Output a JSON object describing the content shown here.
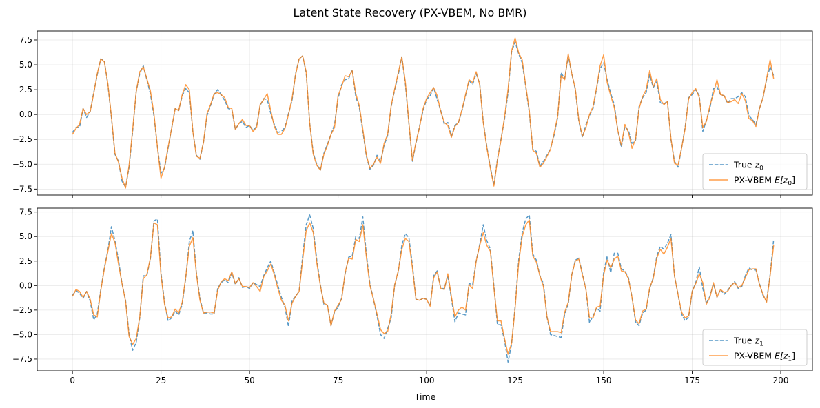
{
  "figure": {
    "title": "Latent State Recovery (PX-VBEM, No BMR)",
    "xlabel": "Time"
  },
  "colors": {
    "true": "#1f77b4",
    "est": "#ff7f0e",
    "grid": "#b0b0b0",
    "axis": "#000000"
  },
  "chart_data": [
    {
      "type": "line",
      "xlim": [
        -9.95,
        208.95
      ],
      "ylim": [
        -8.1,
        8.4
      ],
      "xticks": [
        0,
        25,
        50,
        75,
        100,
        125,
        150,
        175,
        200
      ],
      "yticks": [
        -7.5,
        -5.0,
        -2.5,
        0.0,
        2.5,
        5.0,
        7.5
      ],
      "ytick_labels": [
        "−7.5",
        "−5.0",
        "−2.5",
        "0.0",
        "2.5",
        "5.0",
        "7.5"
      ],
      "grid": true,
      "legend_placement": "lower right",
      "legend": {
        "true_text": "True ",
        "true_math": "z",
        "true_sub": "0",
        "est_text": "PX-VBEM ",
        "est_math": "E[z",
        "est_sub": "0",
        "est_close": "]"
      },
      "series": [
        {
          "name": "True z0",
          "style": "dashed",
          "values": [
            -1.8,
            -1.3,
            -1.3,
            0.6,
            -0.3,
            0.3,
            2.2,
            4,
            5.6,
            5.4,
            3,
            -0.3,
            -4,
            -4.7,
            -6.7,
            -7.3,
            -5.3,
            -1.7,
            2.3,
            4.1,
            4.9,
            3.5,
            2.1,
            -0.1,
            -3.3,
            -5.9,
            -5.4,
            -3.4,
            -1.4,
            0.6,
            0.4,
            1.9,
            2.6,
            2.2,
            -1.7,
            -4.1,
            -4.5,
            -2.8,
            -0.1,
            0.9,
            2,
            2.5,
            2,
            1.4,
            0.6,
            0.5,
            -1.5,
            -0.9,
            -0.7,
            -1.3,
            -1.1,
            -1.6,
            -1.2,
            0.9,
            1.6,
            1.5,
            0.1,
            -1,
            -1.8,
            -1.7,
            -1.3,
            0.1,
            1.4,
            4.1,
            5.6,
            5.9,
            4.2,
            -0.9,
            -3.9,
            -5,
            -5.6,
            -3.9,
            -3,
            -2,
            -1,
            1.6,
            3,
            3.5,
            3.6,
            4.5,
            1.8,
            0.7,
            -1.7,
            -4.2,
            -5.5,
            -5.1,
            -4.1,
            -4.7,
            -3.1,
            -2.1,
            0.8,
            2.5,
            4,
            5.8,
            3.1,
            -0.9,
            -4.7,
            -2.9,
            -1.2,
            0.4,
            1.5,
            1.9,
            2.7,
            1.5,
            0.4,
            -1,
            -0.8,
            -2.2,
            -1.1,
            -0.8,
            0.4,
            1.9,
            3.4,
            3,
            4.1,
            3.1,
            -0.7,
            -3.2,
            -5.3,
            -7.1,
            -4.5,
            -2.5,
            -0.5,
            2.2,
            6.3,
            7.3,
            6.1,
            5.2,
            2.8,
            0.2,
            -3.5,
            -3.7,
            -5.2,
            -4.7,
            -4.1,
            -3.4,
            -2.1,
            -0.3,
            4.2,
            3.6,
            5.9,
            4.1,
            2.5,
            -0.7,
            -2.3,
            -1,
            -0.1,
            0.6,
            2.6,
            4.6,
            5.2,
            3.5,
            2.1,
            1,
            -1.6,
            -3.3,
            -1.2,
            -1.6,
            -2.9,
            -2.6,
            0.8,
            1.7,
            2.2,
            4,
            2.7,
            3.3,
            1.2,
            1,
            1.4,
            -2.5,
            -4.7,
            -5.3,
            -3.4,
            -1.3,
            1.7,
            2,
            2.5,
            1.9,
            -1.7,
            -0.6,
            0.6,
            2.6,
            2.8,
            2,
            1.9,
            1.1,
            1.6,
            1.6,
            1.8,
            2.2,
            1.8,
            -0.1,
            -0.5,
            -1,
            0.6,
            1.7,
            3.5,
            4.8,
            3.9
          ]
        },
        {
          "name": "PX-VBEM E[z0]",
          "style": "solid",
          "values": [
            -2,
            -1.4,
            -1,
            0.6,
            0,
            0.3,
            2.1,
            4.1,
            5.6,
            5.3,
            3.1,
            -0.2,
            -3.9,
            -4.8,
            -6.4,
            -7.4,
            -5.1,
            -1.5,
            2.3,
            4.3,
            4.8,
            3.6,
            2.4,
            0.1,
            -3.3,
            -6.4,
            -5.3,
            -3.3,
            -1.4,
            0.6,
            0.4,
            2,
            3,
            2.5,
            -1.7,
            -4.2,
            -4.4,
            -2.8,
            0.1,
            1,
            2.1,
            2.2,
            2,
            1.7,
            0.7,
            0.6,
            -1.5,
            -0.9,
            -0.5,
            -1.1,
            -1.1,
            -1.7,
            -1.3,
            1,
            1.5,
            2.1,
            0.4,
            -1.2,
            -2,
            -2,
            -1.4,
            0,
            1.6,
            4,
            5.6,
            5.9,
            4.3,
            -0.9,
            -4,
            -5.1,
            -5.6,
            -4,
            -3.1,
            -2,
            -1.3,
            1.9,
            2.8,
            3.9,
            3.8,
            4.4,
            2.1,
            0.9,
            -1.5,
            -4.1,
            -5.4,
            -5,
            -4.3,
            -4.9,
            -2.9,
            -2,
            0.9,
            2.6,
            4.2,
            5.8,
            3.3,
            -0.8,
            -4.6,
            -2.8,
            -1.3,
            0.6,
            1.6,
            2.2,
            2.7,
            1.9,
            0.3,
            -0.8,
            -1.1,
            -2.3,
            -1.2,
            -0.8,
            0.5,
            2,
            3.5,
            3.2,
            4.3,
            3,
            -0.8,
            -3.3,
            -5.4,
            -7.2,
            -4.6,
            -2.6,
            -0.3,
            2.5,
            6.4,
            7.7,
            6.2,
            5.5,
            2.9,
            0.4,
            -3.6,
            -3.9,
            -5.3,
            -4.9,
            -4.2,
            -3.5,
            -1.9,
            -0.2,
            3.9,
            3.5,
            6.1,
            4.1,
            2.6,
            -0.6,
            -2.2,
            -1.3,
            0,
            0.8,
            2.7,
            4.9,
            6,
            3.2,
            1.9,
            0.7,
            -1.6,
            -3.1,
            -1,
            -1.8,
            -3.4,
            -2.5,
            0.6,
            1.8,
            2.5,
            4.4,
            2.8,
            3.6,
            1.5,
            1,
            1.3,
            -2.4,
            -4.9,
            -5.1,
            -3.4,
            -1.4,
            1.6,
            2.2,
            2.6,
            1.7,
            -1.3,
            -0.7,
            0.9,
            2.1,
            3.5,
            2,
            1.9,
            1.2,
            1.3,
            1.5,
            1.1,
            2.1,
            1.4,
            -0.4,
            -0.6,
            -1.2,
            0.6,
            1.7,
            3.6,
            5.5,
            3.6
          ]
        }
      ]
    },
    {
      "type": "line",
      "xlim": [
        -9.95,
        208.95
      ],
      "ylim": [
        -8.7,
        7.9
      ],
      "xticks": [
        0,
        25,
        50,
        75,
        100,
        125,
        150,
        175,
        200
      ],
      "xtick_labels": [
        "0",
        "25",
        "50",
        "75",
        "100",
        "125",
        "150",
        "175",
        "200"
      ],
      "yticks": [
        -7.5,
        -5.0,
        -2.5,
        0.0,
        2.5,
        5.0,
        7.5
      ],
      "ytick_labels": [
        "−7.5",
        "−5.0",
        "−2.5",
        "0.0",
        "2.5",
        "5.0",
        "7.5"
      ],
      "grid": true,
      "legend_placement": "lower right",
      "legend": {
        "true_text": "True ",
        "true_math": "z",
        "true_sub": "1",
        "est_text": "PX-VBEM ",
        "est_math": "E[z",
        "est_sub": "1",
        "est_close": "]"
      },
      "series": [
        {
          "name": "True z1",
          "style": "dashed",
          "values": [
            -1,
            -0.5,
            -0.8,
            -1.3,
            -0.6,
            -1.6,
            -3.5,
            -2.9,
            -0.4,
            1.8,
            3.6,
            6,
            4.6,
            2.6,
            0.2,
            -1.5,
            -5,
            -6.6,
            -5.8,
            -3.3,
            1,
            1,
            2.7,
            6.6,
            6.8,
            1.3,
            -1.7,
            -3.6,
            -3.3,
            -2.6,
            -3,
            -1.9,
            0.8,
            4.5,
            5.6,
            1.3,
            -1.3,
            -2.8,
            -2.8,
            -2.9,
            -2.9,
            -0.3,
            0.3,
            0.6,
            0.3,
            1.3,
            0.1,
            0.8,
            -0.2,
            -0.1,
            -0.3,
            0.3,
            0.1,
            -0.1,
            1,
            1.8,
            2.5,
            1.3,
            0,
            -1.2,
            -2.2,
            -4.2,
            -1.6,
            -1.1,
            -0.6,
            3,
            6.2,
            7.2,
            5.8,
            2.6,
            0.1,
            -1.9,
            -2,
            -4.1,
            -2.7,
            -2.2,
            -1.3,
            1.2,
            2.9,
            3,
            5,
            4.8,
            7,
            3.2,
            0.2,
            -1.4,
            -3.1,
            -5,
            -5.4,
            -4.4,
            -3.3,
            0.1,
            1.4,
            4.1,
            5.3,
            4.9,
            2.1,
            -1.4,
            -1.5,
            -1.3,
            -1.4,
            -2.1,
            1,
            1.5,
            -0.3,
            -0.3,
            1,
            -1.3,
            -3.7,
            -2.8,
            -2.9,
            -3,
            0.2,
            0.1,
            2.5,
            4.2,
            6.2,
            4.6,
            3.7,
            0,
            -4,
            -4,
            -5.6,
            -7.8,
            -6,
            -2.1,
            2.6,
            5.4,
            6.8,
            7.2,
            3.2,
            2.6,
            1,
            0.2,
            -3.2,
            -5,
            -5.1,
            -5.2,
            -5.3,
            -2.9,
            -1.9,
            1.1,
            2.6,
            2.8,
            1.2,
            -0.4,
            -3.8,
            -3.1,
            -2.3,
            -2.6,
            1.4,
            3,
            1.3,
            3.3,
            3.3,
            1.7,
            1.5,
            0.8,
            -1.2,
            -3.7,
            -4.1,
            -2.8,
            -2.5,
            -0.3,
            0.8,
            3,
            4,
            3.7,
            4.3,
            5.2,
            1,
            -0.9,
            -2.9,
            -3.6,
            -3.2,
            -0.6,
            0.3,
            1.9,
            -0.3,
            -1.8,
            -1.1,
            0.2,
            -1.2,
            -0.4,
            -0.9,
            -0.5,
            0,
            0.4,
            -0.3,
            -0.1,
            1,
            1.8,
            1.6,
            1.6,
            0.2,
            -1,
            -1.6,
            1.1,
            4.7
          ]
        },
        {
          "name": "PX-VBEM E[z1]",
          "style": "solid",
          "values": [
            -1.1,
            -0.4,
            -0.6,
            -1.2,
            -0.6,
            -1.4,
            -3,
            -3.2,
            -0.5,
            1.7,
            3.5,
            5.3,
            4.4,
            2.2,
            0.2,
            -1.6,
            -5.2,
            -6,
            -5.4,
            -3.2,
            0.7,
            1.1,
            2.8,
            6.4,
            6.2,
            1.1,
            -1.9,
            -3.3,
            -3.2,
            -2.4,
            -2.8,
            -1.7,
            0.9,
            4,
            4.9,
            1.2,
            -1.5,
            -2.8,
            -2.7,
            -2.7,
            -2.8,
            -0.5,
            0.4,
            0.7,
            0.5,
            1.4,
            0.2,
            0.7,
            -0.1,
            -0.1,
            -0.2,
            0.3,
            -0.1,
            -0.6,
            0.9,
            1.5,
            2.2,
            1.1,
            -0.3,
            -1.5,
            -2,
            -3.6,
            -1.8,
            -1.1,
            -0.6,
            2.6,
            5.6,
            6.4,
            5.4,
            2.3,
            0,
            -1.8,
            -2,
            -4.1,
            -2.6,
            -2,
            -1.4,
            1.3,
            2.8,
            2.7,
            4.7,
            4.5,
            6.2,
            2.9,
            0,
            -1.4,
            -2.9,
            -4.5,
            -4.9,
            -4.7,
            -2.9,
            0.1,
            1.5,
            3.7,
            4.8,
            4.5,
            1.8,
            -1.4,
            -1.5,
            -1.3,
            -1.4,
            -2.1,
            0.8,
            1.4,
            -0.3,
            -0.4,
            1.2,
            -1.1,
            -3.2,
            -2.5,
            -2.2,
            -2.5,
            0.1,
            -0.3,
            2.5,
            4.1,
            5.4,
            4.1,
            3.5,
            -0.2,
            -3.6,
            -3.6,
            -5.4,
            -7,
            -5.9,
            -2.3,
            2.3,
            5,
            6.2,
            6.7,
            3,
            2.4,
            1,
            -0.1,
            -3.2,
            -4.7,
            -4.7,
            -4.7,
            -4.8,
            -2.7,
            -1.7,
            1.1,
            2.5,
            2.7,
            1.1,
            -0.4,
            -3.3,
            -3.3,
            -2.2,
            -2.1,
            1.1,
            2.6,
            1.8,
            2.7,
            3,
            1.5,
            1.4,
            0.7,
            -1.2,
            -3.5,
            -3.9,
            -2.6,
            -2.4,
            -0.2,
            0.7,
            2.8,
            3.7,
            3.2,
            3.9,
            4.8,
            1,
            -0.9,
            -2.7,
            -3.3,
            -3.1,
            -0.6,
            0.2,
            1.2,
            0.3,
            -1.9,
            -1.2,
            0.3,
            -1.2,
            -0.4,
            -0.7,
            -0.6,
            0,
            0.3,
            -0.2,
            0,
            0.8,
            1.6,
            1.7,
            1.7,
            0.1,
            -0.9,
            -1.7,
            1,
            4.1
          ]
        }
      ]
    }
  ]
}
